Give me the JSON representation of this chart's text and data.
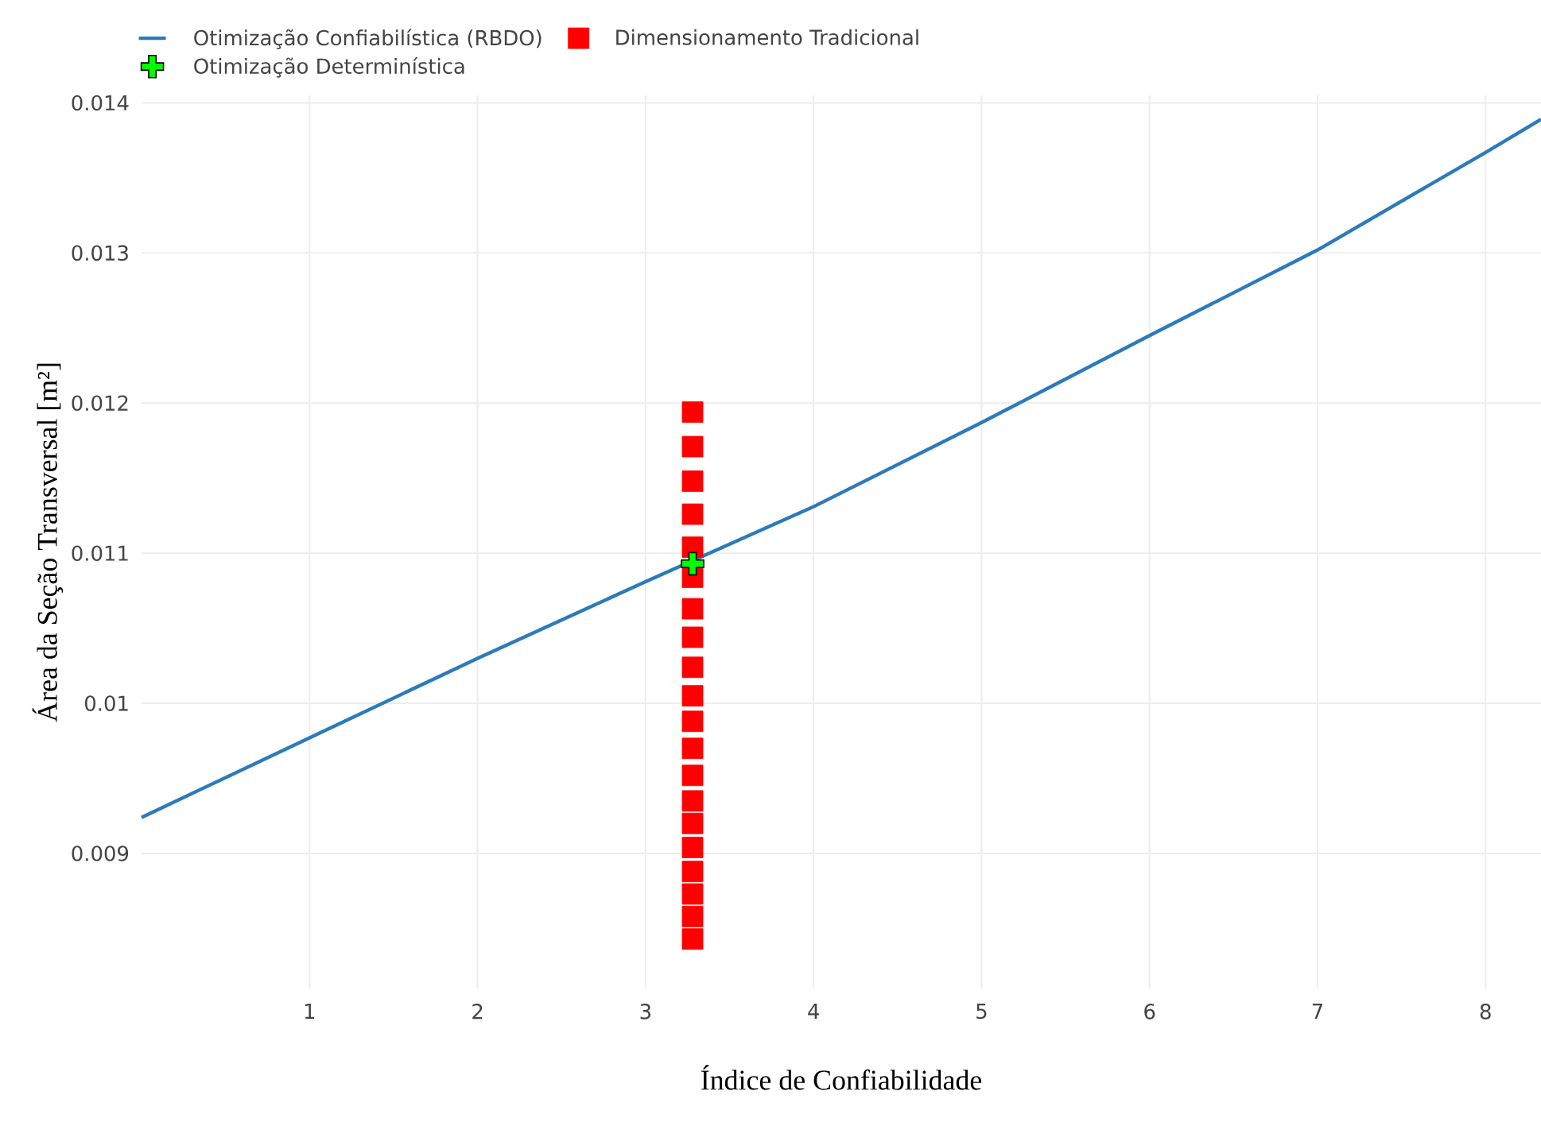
{
  "chart_data": {
    "type": "line",
    "xlabel": "Índice de Confiabilidade",
    "ylabel": "Área da Seção Transversal [m²]",
    "xlim": [
      0,
      8.33
    ],
    "ylim": [
      0.0081,
      0.01405
    ],
    "xticks": [
      1,
      2,
      3,
      4,
      5,
      6,
      7,
      8
    ],
    "yticks": [
      0.009,
      0.01,
      0.011,
      0.012,
      0.013,
      0.014
    ],
    "grid": true,
    "legend": "top left",
    "series": [
      {
        "name": "Otimização Confiabilística (RBDO)",
        "color": "#2b7bba",
        "marker": "none",
        "line_style": "solid",
        "x": [
          0,
          1,
          2,
          3,
          4,
          5,
          6,
          7,
          8,
          8.33
        ],
        "values": [
          0.00924,
          0.00977,
          0.0103,
          0.01081,
          0.01131,
          0.01187,
          0.01245,
          0.01302,
          0.01367,
          0.01389
        ]
      },
      {
        "name": "Dimensionamento Tradicional",
        "type": "scatter",
        "color": "#ff0000",
        "marker": "square",
        "x": [
          3.28,
          3.28,
          3.28,
          3.28,
          3.28,
          3.28,
          3.28,
          3.28,
          3.28,
          3.28,
          3.28,
          3.28,
          3.28,
          3.28,
          3.28,
          3.28,
          3.28,
          3.28,
          3.28,
          3.28
        ],
        "values": [
          0.01194,
          0.01171,
          0.01148,
          0.01126,
          0.01104,
          0.01084,
          0.01063,
          0.01044,
          0.01024,
          0.01005,
          0.00988,
          0.0097,
          0.00952,
          0.00935,
          0.0092,
          0.00904,
          0.00888,
          0.00873,
          0.00858,
          0.00843
        ]
      },
      {
        "name": "Otimização Determinística",
        "type": "scatter",
        "color": "#00ff00",
        "marker": "cross",
        "x": [
          3.28
        ],
        "values": [
          0.01093
        ]
      }
    ]
  }
}
